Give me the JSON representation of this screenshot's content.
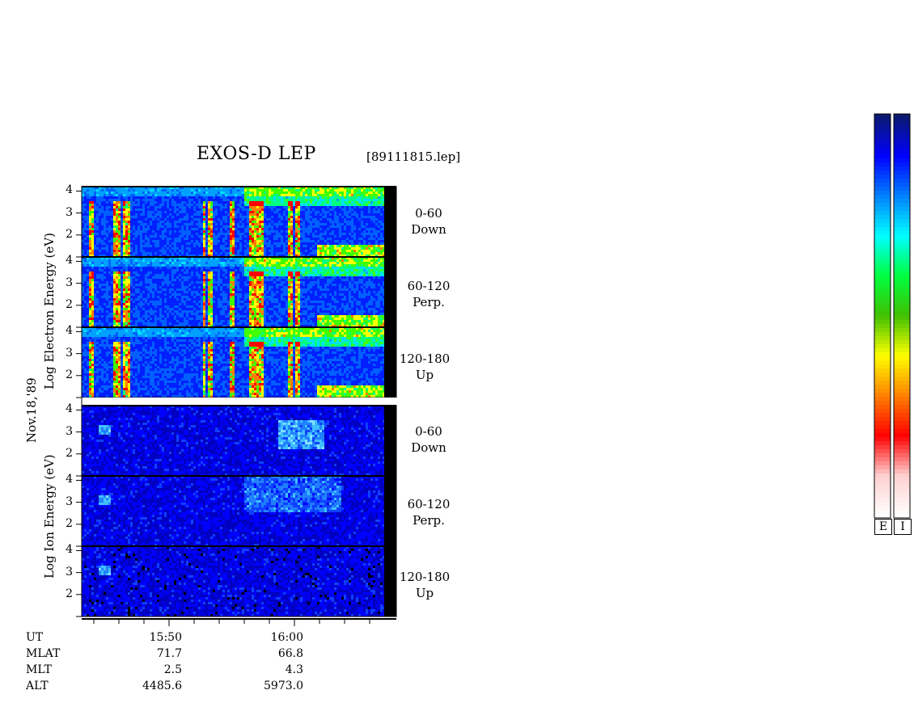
{
  "header": {
    "title": "EXOS-D LEP",
    "file": "[89111815.lep]"
  },
  "side_labels": {
    "electron": "Log  Electron  Energy  (eV)",
    "ion": "Log  Ion  Energy  (eV)",
    "date": "Nov.18,'89"
  },
  "colorbar": {
    "labels": [
      "E",
      "I"
    ],
    "colors": [
      "#0a1a6e",
      "#0000ff",
      "#0080ff",
      "#00ffff",
      "#00ff40",
      "#40c000",
      "#ffff00",
      "#ff8000",
      "#ff0000",
      "#ffd0d0",
      "#ffffff"
    ]
  },
  "chart_data": {
    "type": "heatmap",
    "title": "EXOS-D LEP",
    "panels": [
      {
        "species": "Electron",
        "pitch": "0-60",
        "direction": "Down"
      },
      {
        "species": "Electron",
        "pitch": "60-120",
        "direction": "Perp."
      },
      {
        "species": "Electron",
        "pitch": "120-180",
        "direction": "Up"
      },
      {
        "species": "Ion",
        "pitch": "0-60",
        "direction": "Down"
      },
      {
        "species": "Ion",
        "pitch": "60-120",
        "direction": "Perp."
      },
      {
        "species": "Ion",
        "pitch": "120-180",
        "direction": "Up"
      }
    ],
    "y_ticks": [
      "4",
      "3",
      "2"
    ],
    "ylim": [
      1,
      4.2
    ],
    "x_ticks": [
      "15:50",
      "16:00"
    ],
    "ephemeris": {
      "rows": [
        {
          "label": "UT",
          "values": [
            "15:50",
            "16:00"
          ]
        },
        {
          "label": "MLAT",
          "values": [
            "71.7",
            "66.8"
          ]
        },
        {
          "label": "MLT",
          "values": [
            "2.5",
            "4.3"
          ]
        },
        {
          "label": "ALT",
          "values": [
            "4485.6",
            "5973.0"
          ]
        }
      ]
    }
  }
}
